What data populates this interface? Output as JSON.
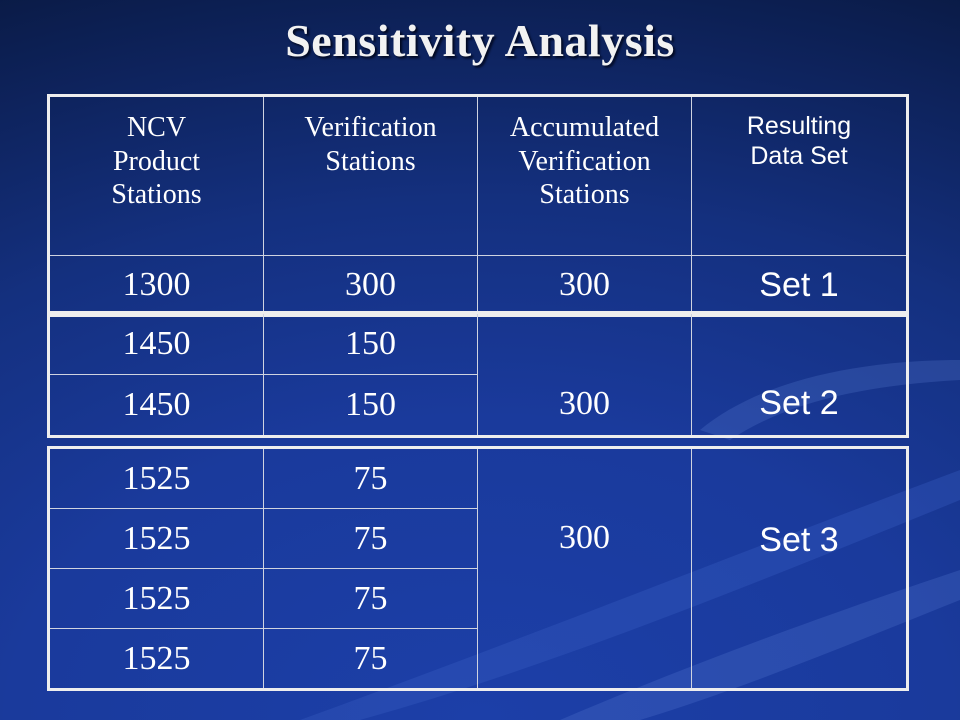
{
  "title": "Sensitivity Analysis",
  "header": {
    "col1": [
      "NCV",
      "Product",
      "Stations"
    ],
    "col2": [
      "Verification",
      "Stations"
    ],
    "col3": [
      "Accumulated",
      "Verification",
      "Stations"
    ],
    "col4": [
      "Resulting",
      "Data Set"
    ]
  },
  "set1": {
    "ncv": "1300",
    "verification": "300",
    "accumulated": "300",
    "set": "Set 1"
  },
  "set2": {
    "rows": [
      {
        "ncv": "1450",
        "verification": "150"
      },
      {
        "ncv": "1450",
        "verification": "150"
      }
    ],
    "accumulated": "300",
    "set": "Set 2"
  },
  "set3": {
    "rows": [
      {
        "ncv": "1525",
        "verification": "75"
      },
      {
        "ncv": "1525",
        "verification": "75"
      },
      {
        "ncv": "1525",
        "verification": "75"
      },
      {
        "ncv": "1525",
        "verification": "75"
      }
    ],
    "accumulated": "300",
    "set": "Set 3"
  }
}
